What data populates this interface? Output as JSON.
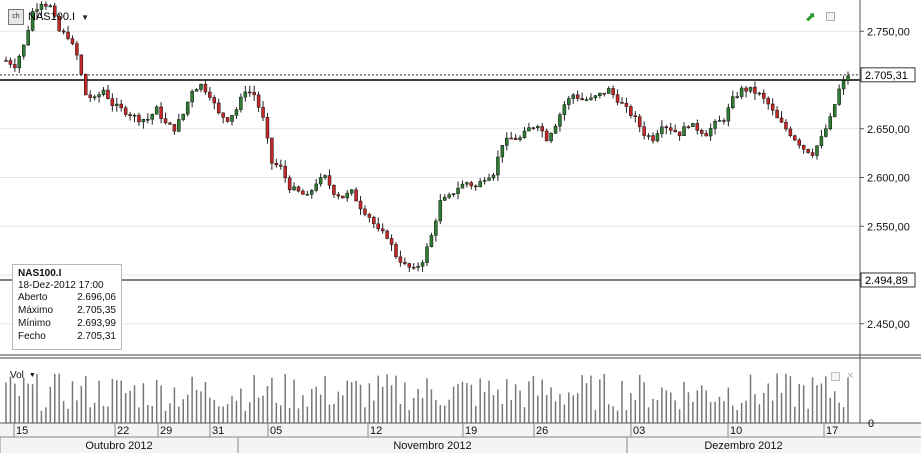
{
  "instrument": {
    "symbol": "NAS100.I",
    "icon_text": "ch"
  },
  "info_box": {
    "symbol": "NAS100.I",
    "datetime": "18-Dez-2012 17:00",
    "rows": [
      {
        "label": "Aberto",
        "value": "2.696,06"
      },
      {
        "label": "Máximo",
        "value": "2.705,35"
      },
      {
        "label": "Mínimo",
        "value": "2.693,99"
      },
      {
        "label": "Fecho",
        "value": "2.705,31"
      }
    ]
  },
  "volume_panel": {
    "label": "Vol",
    "zero_label": "0"
  },
  "icons": {
    "instrument_icon": "chart-icon",
    "trend_icon": "green-trend-arrow-icon",
    "maximize_icon": "maximize-square-icon",
    "volume_maximize_icon": "maximize-square-icon",
    "volume_close_icon": "close-icon",
    "dropdown_icon": "triangle-down-icon"
  },
  "colors": {
    "up": "#2e7d32",
    "down": "#c62828",
    "wick": "#222222",
    "volume": "#777777",
    "grid": "#e6e6e6"
  },
  "chart_data": {
    "type": "candlestick",
    "ylim": [
      2420,
      2780
    ],
    "y_ticks": [
      {
        "value": 2750,
        "label": "2.750,00"
      },
      {
        "value": 2700,
        "label": ""
      },
      {
        "value": 2650,
        "label": "2.650,00"
      },
      {
        "value": 2600,
        "label": "2.600,00"
      },
      {
        "value": 2550,
        "label": "2.550,00"
      },
      {
        "value": 2500,
        "label": ""
      },
      {
        "value": 2450,
        "label": "2.450,00"
      }
    ],
    "last_price": {
      "value": 2705.31,
      "label": "2.705,31"
    },
    "resistance_line": {
      "value": 2700
    },
    "support_line": {
      "value": 2494.89,
      "label": "2.494,89"
    },
    "x_day_labels": [
      "15",
      "22",
      "29",
      "31",
      "05",
      "12",
      "19",
      "26",
      "03",
      "10",
      "17"
    ],
    "months": [
      "Outubro 2012",
      "Novembro 2012",
      "Dezembro 2012"
    ],
    "anchors": [
      [
        0,
        2720
      ],
      [
        2,
        2715
      ],
      [
        4,
        2735
      ],
      [
        6,
        2770
      ],
      [
        8,
        2780
      ],
      [
        10,
        2775
      ],
      [
        12,
        2750
      ],
      [
        14,
        2745
      ],
      [
        16,
        2725
      ],
      [
        18,
        2685
      ],
      [
        20,
        2680
      ],
      [
        22,
        2690
      ],
      [
        24,
        2675
      ],
      [
        26,
        2670
      ],
      [
        28,
        2665
      ],
      [
        30,
        2660
      ],
      [
        32,
        2660
      ],
      [
        34,
        2670
      ],
      [
        36,
        2655
      ],
      [
        38,
        2650
      ],
      [
        40,
        2665
      ],
      [
        42,
        2690
      ],
      [
        44,
        2695
      ],
      [
        46,
        2685
      ],
      [
        48,
        2665
      ],
      [
        50,
        2660
      ],
      [
        52,
        2670
      ],
      [
        54,
        2690
      ],
      [
        56,
        2685
      ],
      [
        58,
        2660
      ],
      [
        60,
        2615
      ],
      [
        62,
        2610
      ],
      [
        64,
        2590
      ],
      [
        66,
        2585
      ],
      [
        68,
        2580
      ],
      [
        70,
        2595
      ],
      [
        72,
        2600
      ],
      [
        74,
        2585
      ],
      [
        76,
        2580
      ],
      [
        78,
        2585
      ],
      [
        80,
        2570
      ],
      [
        82,
        2560
      ],
      [
        84,
        2545
      ],
      [
        86,
        2540
      ],
      [
        88,
        2520
      ],
      [
        90,
        2510
      ],
      [
        92,
        2505
      ],
      [
        94,
        2515
      ],
      [
        96,
        2540
      ],
      [
        98,
        2575
      ],
      [
        100,
        2580
      ],
      [
        102,
        2590
      ],
      [
        104,
        2595
      ],
      [
        106,
        2590
      ],
      [
        108,
        2600
      ],
      [
        110,
        2605
      ],
      [
        112,
        2635
      ],
      [
        114,
        2640
      ],
      [
        116,
        2640
      ],
      [
        118,
        2650
      ],
      [
        120,
        2655
      ],
      [
        122,
        2640
      ],
      [
        124,
        2655
      ],
      [
        126,
        2675
      ],
      [
        128,
        2685
      ],
      [
        130,
        2680
      ],
      [
        132,
        2680
      ],
      [
        134,
        2685
      ],
      [
        136,
        2690
      ],
      [
        138,
        2680
      ],
      [
        140,
        2670
      ],
      [
        142,
        2660
      ],
      [
        144,
        2645
      ],
      [
        146,
        2640
      ],
      [
        148,
        2655
      ],
      [
        150,
        2650
      ],
      [
        152,
        2645
      ],
      [
        154,
        2655
      ],
      [
        156,
        2650
      ],
      [
        158,
        2645
      ],
      [
        160,
        2655
      ],
      [
        162,
        2660
      ],
      [
        164,
        2680
      ],
      [
        166,
        2690
      ],
      [
        168,
        2690
      ],
      [
        170,
        2685
      ],
      [
        172,
        2675
      ],
      [
        174,
        2660
      ],
      [
        176,
        2650
      ],
      [
        178,
        2640
      ],
      [
        180,
        2630
      ],
      [
        182,
        2625
      ],
      [
        184,
        2640
      ],
      [
        186,
        2660
      ],
      [
        188,
        2690
      ],
      [
        190,
        2705
      ]
    ]
  }
}
